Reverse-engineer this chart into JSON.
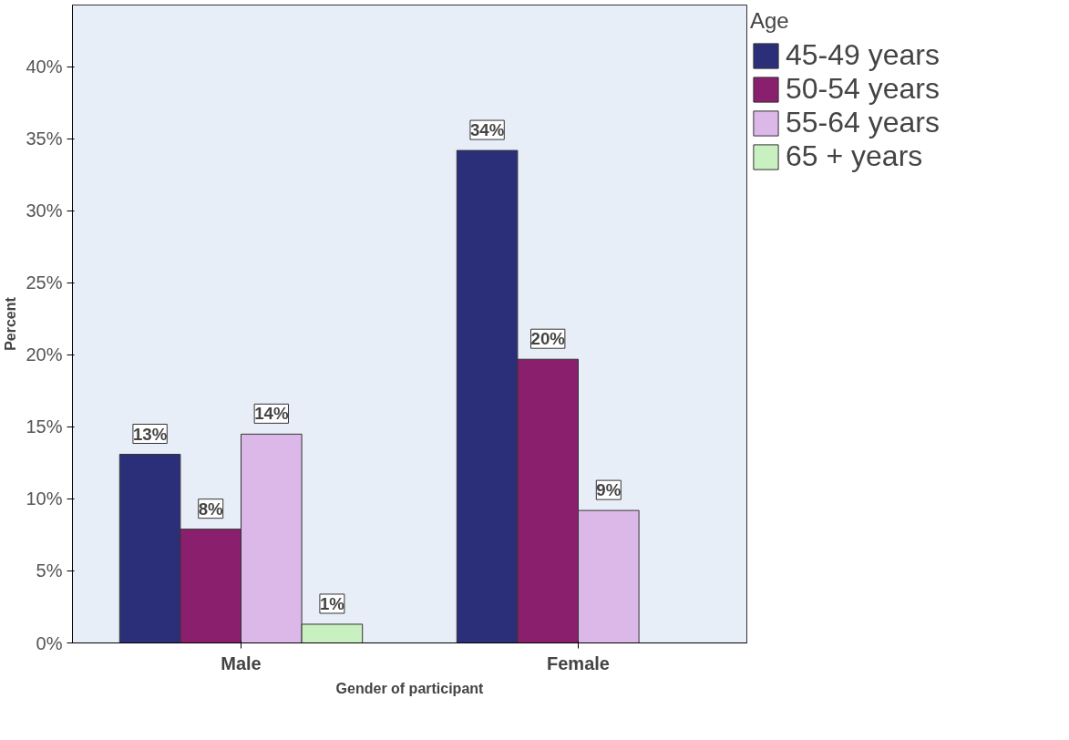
{
  "chart_data": {
    "type": "bar",
    "xlabel": "Gender of participant",
    "ylabel": "Percent",
    "legend_title": "Age",
    "legend": "top right",
    "grid": false,
    "categories": [
      "Male",
      "Female"
    ],
    "ylim": [
      0,
      44.3
    ],
    "yticks": [
      {
        "value": 0,
        "label": "0%"
      },
      {
        "value": 5,
        "label": "5%"
      },
      {
        "value": 10,
        "label": "10%"
      },
      {
        "value": 15,
        "label": "15%"
      },
      {
        "value": 20,
        "label": "20%"
      },
      {
        "value": 25,
        "label": "25%"
      },
      {
        "value": 30,
        "label": "30%"
      },
      {
        "value": 35,
        "label": "35%"
      },
      {
        "value": 40,
        "label": "40%"
      }
    ],
    "series": [
      {
        "name": "45-49 years",
        "color": "#2b2f7a",
        "values": [
          13.1,
          34.2
        ],
        "value_labels": [
          "13%",
          "34%"
        ]
      },
      {
        "name": "50-54 years",
        "color": "#8a1f6e",
        "values": [
          7.9,
          19.7
        ],
        "value_labels": [
          "8%",
          "20%"
        ]
      },
      {
        "name": "55-64 years",
        "color": "#dcb8e8",
        "values": [
          14.5,
          9.2
        ],
        "value_labels": [
          "14%",
          "9%"
        ]
      },
      {
        "name": "65 + years",
        "color": "#c8f0c0",
        "values": [
          1.3,
          null
        ],
        "value_labels": [
          "1%",
          null
        ]
      }
    ]
  }
}
